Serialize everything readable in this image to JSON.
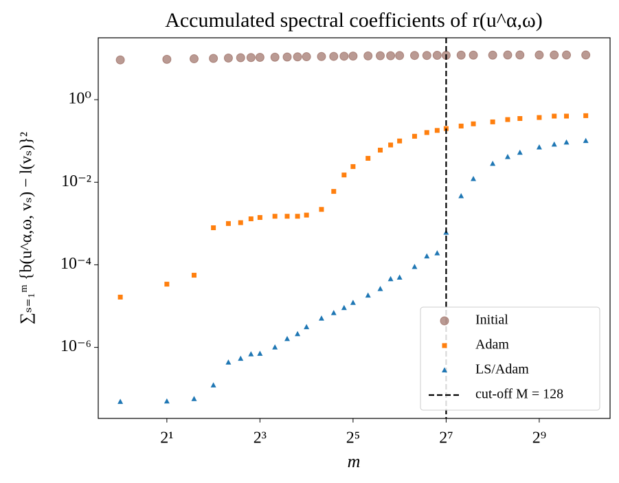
{
  "chart_data": {
    "type": "scatter",
    "title": "Accumulated spectral coefficients of r(u^α,ω)",
    "x_label": "m",
    "y_label": "∑ₛ₌₁ᵐ {b(u^α,ω, vₛ) − l(vₛ)}²",
    "x": [
      1,
      2,
      3,
      4,
      5,
      6,
      7,
      8,
      10,
      12,
      14,
      16,
      20,
      24,
      28,
      32,
      40,
      48,
      56,
      64,
      80,
      96,
      112,
      128,
      160,
      192,
      256,
      320,
      384,
      512,
      640,
      768,
      1024
    ],
    "series": [
      {
        "name": "Initial",
        "color": "#8c564b",
        "marker": "circle",
        "values": [
          9.2,
          9.5,
          9.8,
          10,
          10.2,
          10.4,
          10.5,
          10.6,
          10.7,
          10.8,
          10.9,
          11,
          11.1,
          11.2,
          11.3,
          11.4,
          11.5,
          11.6,
          11.6,
          11.7,
          11.8,
          11.8,
          11.9,
          11.9,
          12,
          12,
          12,
          12.1,
          12.1,
          12.1,
          12.1,
          12.1,
          12.1
        ]
      },
      {
        "name": "Adam",
        "color": "#ff7f0e",
        "marker": "square",
        "values": [
          1.65e-05,
          3.4e-05,
          5.6e-05,
          0.00079,
          0.001,
          0.00105,
          0.0013,
          0.0014,
          0.0015,
          0.0015,
          0.0015,
          0.0016,
          0.0022,
          0.006,
          0.015,
          0.024,
          0.038,
          0.06,
          0.08,
          0.1,
          0.13,
          0.16,
          0.18,
          0.2,
          0.23,
          0.26,
          0.29,
          0.33,
          0.35,
          0.37,
          0.4,
          0.4,
          0.41
        ]
      },
      {
        "name": "LS/Adam",
        "color": "#1f77b4",
        "marker": "triangle",
        "values": [
          4.8e-08,
          4.9e-08,
          5.6e-08,
          1.2e-07,
          4.3e-07,
          5.3e-07,
          6.8e-07,
          7e-07,
          1e-06,
          1.6e-06,
          2.1e-06,
          3.1e-06,
          5e-06,
          6.8e-06,
          9e-06,
          1.2e-05,
          1.8e-05,
          2.6e-05,
          4.5e-05,
          4.9e-05,
          8.9e-05,
          0.00016,
          0.00019,
          0.0006,
          0.0046,
          0.012,
          0.028,
          0.041,
          0.052,
          0.07,
          0.082,
          0.092,
          0.1
        ]
      }
    ],
    "cutoff": {
      "x": 128,
      "label": "cut-off M = 128",
      "color": "#000000"
    },
    "xscale": "log",
    "yscale": "log",
    "xlim": [
      0.72,
      1470
    ],
    "ylim": [
      1.9e-08,
      31.6
    ],
    "xticks": [
      {
        "value": 2,
        "label": "2¹"
      },
      {
        "value": 8,
        "label": "2³"
      },
      {
        "value": 32,
        "label": "2⁵"
      },
      {
        "value": 128,
        "label": "2⁷"
      },
      {
        "value": 512,
        "label": "2⁹"
      }
    ],
    "yticks": [
      {
        "value": 1,
        "label": "10⁰"
      },
      {
        "value": 0.01,
        "label": "10⁻²"
      },
      {
        "value": 0.0001,
        "label": "10⁻⁴"
      },
      {
        "value": 1e-06,
        "label": "10⁻⁶"
      }
    ],
    "grid": false,
    "legend": "lower right"
  }
}
